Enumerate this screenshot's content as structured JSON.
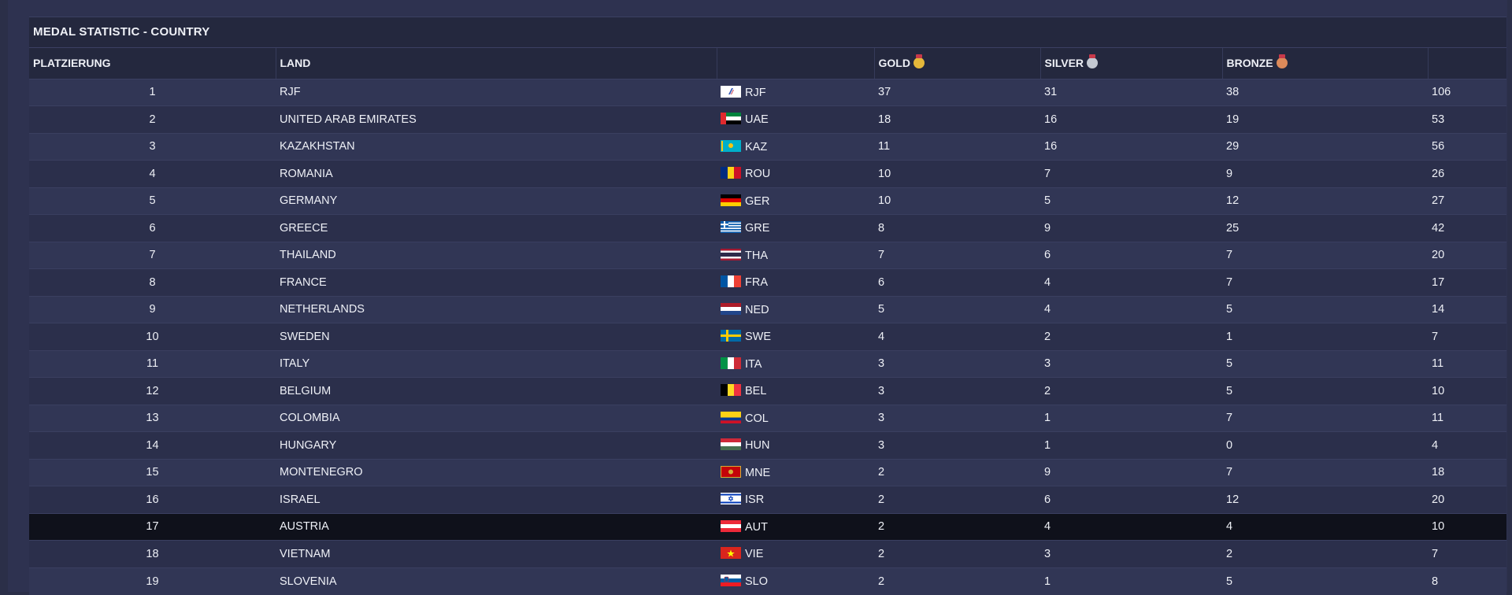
{
  "title": "MEDAL STATISTIC - COUNTRY",
  "columns": {
    "rank": "PLATZIERUNG",
    "country": "LAND",
    "code": "",
    "gold": "GOLD",
    "silver": "SILVER",
    "bronze": "BRONZE",
    "total": ""
  },
  "colors": {
    "gold": "#e5b83a",
    "silver": "#c4c9d2",
    "bronze": "#dc8a5a",
    "highlight_row": "#0f111b"
  },
  "highlighted_rank": "17",
  "rows": [
    {
      "rank": "1",
      "country": "RJF",
      "flag": "rjf-flag-icon",
      "code": "RJF",
      "gold": "37",
      "silver": "31",
      "bronze": "38",
      "total": "106"
    },
    {
      "rank": "2",
      "country": "UNITED ARAB EMIRATES",
      "flag": "uae-flag-icon",
      "code": "UAE",
      "gold": "18",
      "silver": "16",
      "bronze": "19",
      "total": "53"
    },
    {
      "rank": "3",
      "country": "KAZAKHSTAN",
      "flag": "kaz-flag-icon",
      "code": "KAZ",
      "gold": "11",
      "silver": "16",
      "bronze": "29",
      "total": "56"
    },
    {
      "rank": "4",
      "country": "ROMANIA",
      "flag": "rou-flag-icon",
      "code": "ROU",
      "gold": "10",
      "silver": "7",
      "bronze": "9",
      "total": "26"
    },
    {
      "rank": "5",
      "country": "GERMANY",
      "flag": "ger-flag-icon",
      "code": "GER",
      "gold": "10",
      "silver": "5",
      "bronze": "12",
      "total": "27"
    },
    {
      "rank": "6",
      "country": "GREECE",
      "flag": "gre-flag-icon",
      "code": "GRE",
      "gold": "8",
      "silver": "9",
      "bronze": "25",
      "total": "42"
    },
    {
      "rank": "7",
      "country": "THAILAND",
      "flag": "tha-flag-icon",
      "code": "THA",
      "gold": "7",
      "silver": "6",
      "bronze": "7",
      "total": "20"
    },
    {
      "rank": "8",
      "country": "FRANCE",
      "flag": "fra-flag-icon",
      "code": "FRA",
      "gold": "6",
      "silver": "4",
      "bronze": "7",
      "total": "17"
    },
    {
      "rank": "9",
      "country": "NETHERLANDS",
      "flag": "ned-flag-icon",
      "code": "NED",
      "gold": "5",
      "silver": "4",
      "bronze": "5",
      "total": "14"
    },
    {
      "rank": "10",
      "country": "SWEDEN",
      "flag": "swe-flag-icon",
      "code": "SWE",
      "gold": "4",
      "silver": "2",
      "bronze": "1",
      "total": "7"
    },
    {
      "rank": "11",
      "country": "ITALY",
      "flag": "ita-flag-icon",
      "code": "ITA",
      "gold": "3",
      "silver": "3",
      "bronze": "5",
      "total": "11"
    },
    {
      "rank": "12",
      "country": "BELGIUM",
      "flag": "bel-flag-icon",
      "code": "BEL",
      "gold": "3",
      "silver": "2",
      "bronze": "5",
      "total": "10"
    },
    {
      "rank": "13",
      "country": "COLOMBIA",
      "flag": "col-flag-icon",
      "code": "COL",
      "gold": "3",
      "silver": "1",
      "bronze": "7",
      "total": "11"
    },
    {
      "rank": "14",
      "country": "HUNGARY",
      "flag": "hun-flag-icon",
      "code": "HUN",
      "gold": "3",
      "silver": "1",
      "bronze": "0",
      "total": "4"
    },
    {
      "rank": "15",
      "country": "MONTENEGRO",
      "flag": "mne-flag-icon",
      "code": "MNE",
      "gold": "2",
      "silver": "9",
      "bronze": "7",
      "total": "18"
    },
    {
      "rank": "16",
      "country": "ISRAEL",
      "flag": "isr-flag-icon",
      "code": "ISR",
      "gold": "2",
      "silver": "6",
      "bronze": "12",
      "total": "20"
    },
    {
      "rank": "17",
      "country": "AUSTRIA",
      "flag": "aut-flag-icon",
      "code": "AUT",
      "gold": "2",
      "silver": "4",
      "bronze": "4",
      "total": "10"
    },
    {
      "rank": "18",
      "country": "VIETNAM",
      "flag": "vie-flag-icon",
      "code": "VIE",
      "gold": "2",
      "silver": "3",
      "bronze": "2",
      "total": "7"
    },
    {
      "rank": "19",
      "country": "SLOVENIA",
      "flag": "slo-flag-icon",
      "code": "SLO",
      "gold": "2",
      "silver": "1",
      "bronze": "5",
      "total": "8"
    }
  ]
}
